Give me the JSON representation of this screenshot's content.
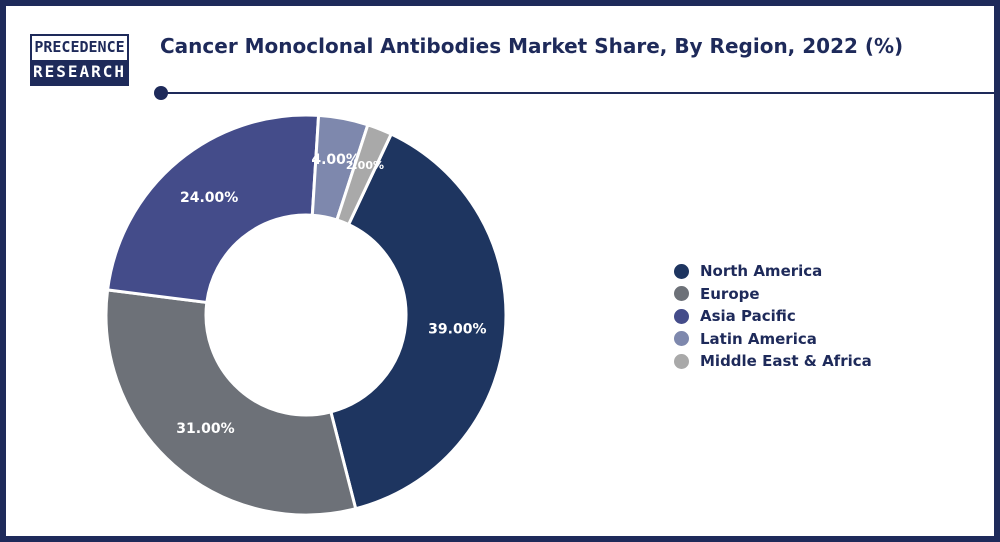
{
  "logo": {
    "line1": "PRECEDENCE",
    "line2": "RESEARCH"
  },
  "title": "Cancer Monoclonal Antibodies Market Share, By Region, 2022 (%)",
  "chart_data": {
    "type": "pie",
    "donut": true,
    "title": "Cancer Monoclonal Antibodies Market Share, By Region, 2022 (%)",
    "categories": [
      "North America",
      "Europe",
      "Asia Pacific",
      "Latin America",
      "Middle East & Africa"
    ],
    "values": [
      39,
      31,
      24,
      4,
      2
    ],
    "data_labels": [
      "39.00%",
      "31.00%",
      "24.00%",
      "4.00%",
      "2.00%"
    ],
    "colors": [
      "#1e3560",
      "#6d7178",
      "#444c8a",
      "#7e88ad",
      "#a9a9a9"
    ],
    "legend_position": "right"
  }
}
